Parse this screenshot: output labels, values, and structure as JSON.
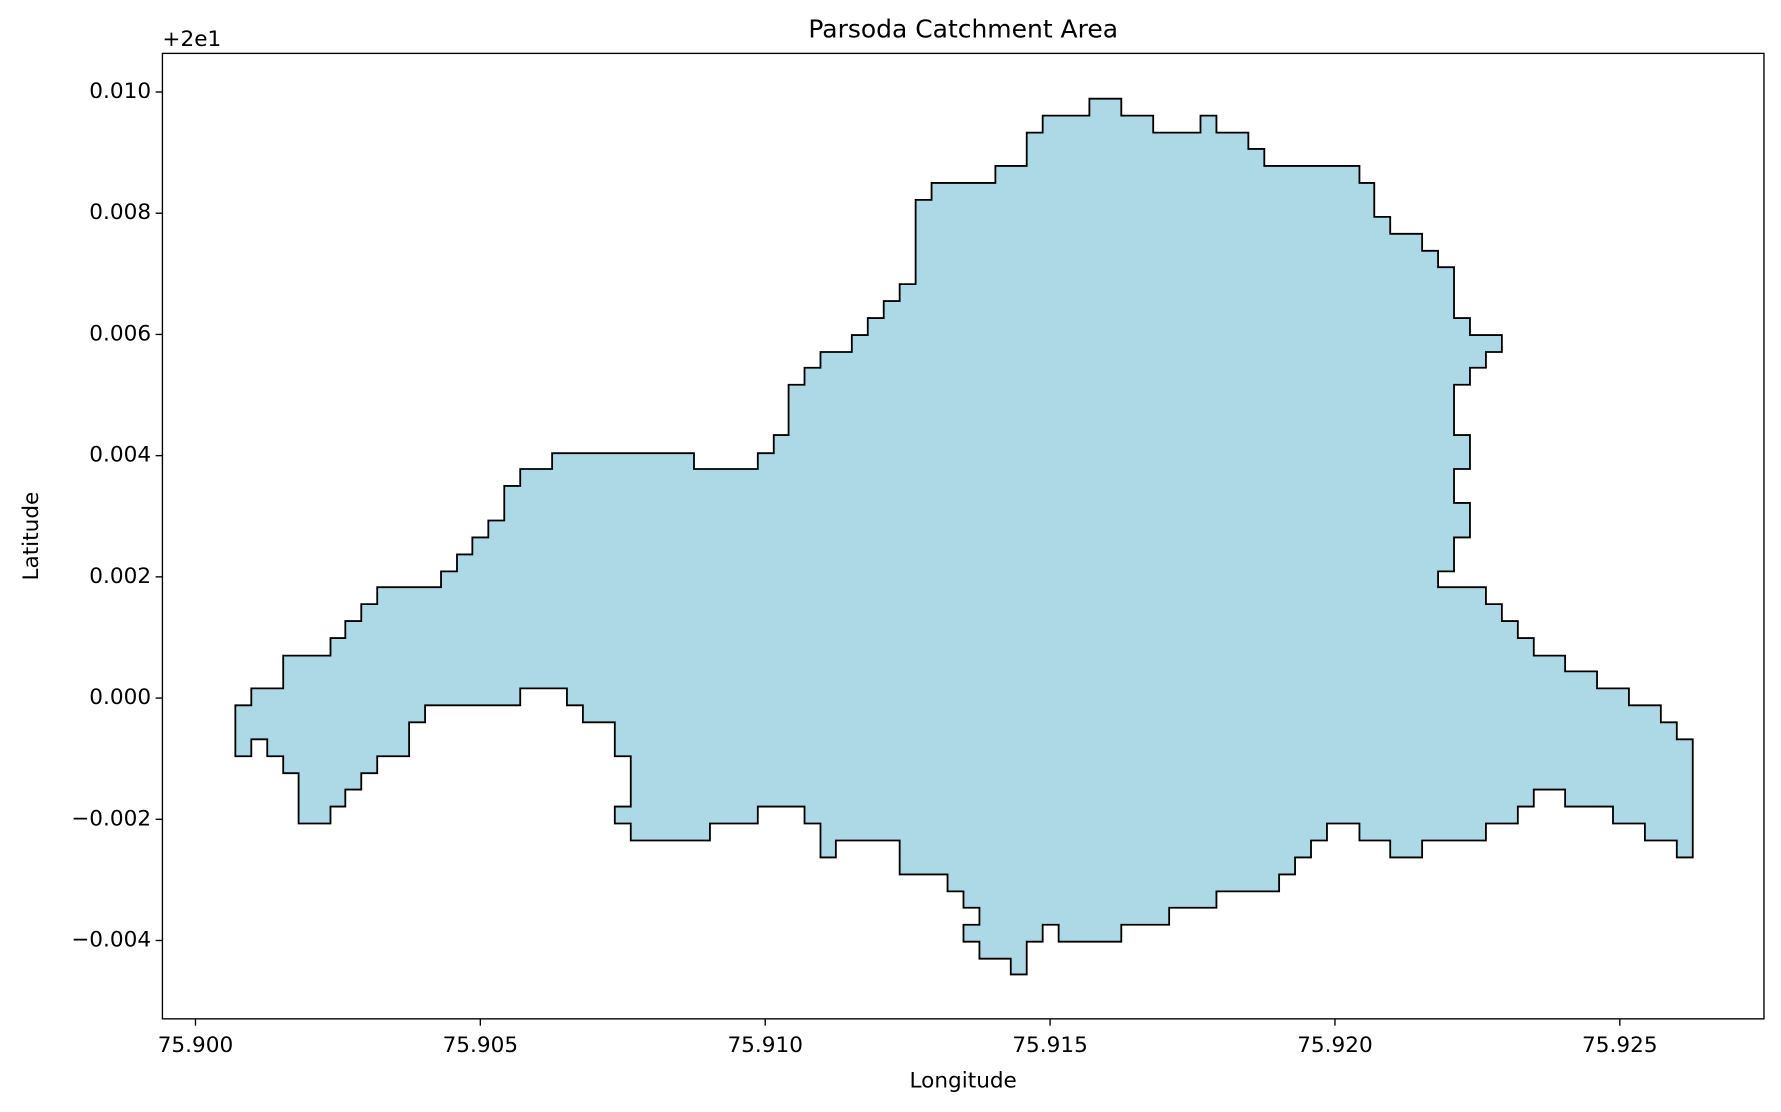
{
  "chart_data": {
    "type": "polygon",
    "title": "Parsoda Catchment Area",
    "xlabel": "Longitude",
    "ylabel": "Latitude",
    "y_offset_label": "+2e1",
    "fill_color": "#add8e6",
    "edge_color": "#000000",
    "xlim": [
      75.89942,
      75.92753
    ],
    "ylim": [
      -0.005293,
      0.010637
    ],
    "xticks": [
      {
        "value": 75.9,
        "label": "75.900"
      },
      75.905,
      {
        "value": 75.91,
        "label": "75.910"
      },
      75.915,
      {
        "value": 75.92,
        "label": "75.920"
      },
      75.925
    ],
    "yticks": [
      {
        "value": -0.004,
        "label": "−0.004"
      },
      {
        "value": -0.002,
        "label": "−0.002"
      },
      {
        "value": 0,
        "label": "0.000"
      },
      0.002,
      0.004,
      0.006,
      0.008,
      {
        "value": 0.01,
        "label": "0.010"
      }
    ],
    "x": [
      75.9007,
      75.9007,
      75.90098,
      75.90098,
      75.90154,
      75.90154,
      75.90237,
      75.90237,
      75.90263,
      75.90263,
      75.90291,
      75.90291,
      75.90319,
      75.90319,
      75.90431,
      75.90431,
      75.90459,
      75.90459,
      75.90486,
      75.90486,
      75.90514,
      75.90514,
      75.90542,
      75.90542,
      75.9057,
      75.9057,
      75.90626,
      75.90626,
      75.90875,
      75.90875,
      75.90987,
      75.90987,
      75.91015,
      75.91015,
      75.91041,
      75.91041,
      75.91069,
      75.91069,
      75.91097,
      75.91097,
      75.91152,
      75.91152,
      75.9118,
      75.9118,
      75.91208,
      75.91208,
      75.91236,
      75.91236,
      75.91264,
      75.91264,
      75.91292,
      75.91292,
      75.91404,
      75.91404,
      75.91459,
      75.91459,
      75.91487,
      75.91487,
      75.91569,
      75.91569,
      75.91625,
      75.91625,
      75.91681,
      75.91681,
      75.91764,
      75.91764,
      75.91792,
      75.91792,
      75.91848,
      75.91848,
      75.91876,
      75.91876,
      75.92043,
      75.92043,
      75.92069,
      75.92069,
      75.92097,
      75.92097,
      75.92153,
      75.92153,
      75.92181,
      75.92181,
      75.92209,
      75.92209,
      75.92237,
      75.92237,
      75.92293,
      75.92293,
      75.92265,
      75.92265,
      75.92237,
      75.92237,
      75.92209,
      75.92209,
      75.92237,
      75.92237,
      75.92209,
      75.92209,
      75.92237,
      75.92237,
      75.92209,
      75.92209,
      75.92181,
      75.92181,
      75.92265,
      75.92265,
      75.92293,
      75.92293,
      75.92321,
      75.92321,
      75.92349,
      75.92349,
      75.92404,
      75.92404,
      75.9246,
      75.9246,
      75.92516,
      75.92516,
      75.92572,
      75.92572,
      75.926,
      75.926,
      75.92628,
      75.92628,
      75.926,
      75.926,
      75.92544,
      75.92544,
      75.92488,
      75.92488,
      75.92404,
      75.92404,
      75.92349,
      75.92349,
      75.92321,
      75.92321,
      75.92265,
      75.92265,
      75.92153,
      75.92153,
      75.92097,
      75.92097,
      75.92043,
      75.92043,
      75.91986,
      75.91986,
      75.91958,
      75.91958,
      75.9193,
      75.9193,
      75.91902,
      75.91902,
      75.91792,
      75.91792,
      75.91709,
      75.91709,
      75.91625,
      75.91625,
      75.91515,
      75.91515,
      75.91487,
      75.91487,
      75.91459,
      75.91459,
      75.91431,
      75.91431,
      75.91376,
      75.91376,
      75.91348,
      75.91348,
      75.91376,
      75.91376,
      75.91348,
      75.91348,
      75.9132,
      75.9132,
      75.91236,
      75.91236,
      75.91124,
      75.91124,
      75.91097,
      75.91097,
      75.91069,
      75.91069,
      75.90987,
      75.90987,
      75.90903,
      75.90903,
      75.90764,
      75.90764,
      75.90736,
      75.90736,
      75.90764,
      75.90764,
      75.90736,
      75.90736,
      75.9068,
      75.9068,
      75.90652,
      75.90652,
      75.9057,
      75.9057,
      75.90403,
      75.90403,
      75.90375,
      75.90375,
      75.90319,
      75.90319,
      75.90291,
      75.90291,
      75.90263,
      75.90263,
      75.90237,
      75.90237,
      75.90181,
      75.90181,
      75.90154,
      75.90154,
      75.90126,
      75.90126,
      75.90098,
      75.90098
    ],
    "y": [
      -0.00096,
      -0.00012,
      -0.00012,
      0.00016,
      0.00016,
      0.0007,
      0.0007,
      0.00099,
      0.00099,
      0.00127,
      0.00127,
      0.00155,
      0.00155,
      0.00183,
      0.00183,
      0.00209,
      0.00209,
      0.00237,
      0.00237,
      0.00265,
      0.00265,
      0.00293,
      0.00293,
      0.0035,
      0.0035,
      0.00378,
      0.00378,
      0.00404,
      0.00404,
      0.00378,
      0.00378,
      0.00404,
      0.00404,
      0.00434,
      0.00434,
      0.00517,
      0.00517,
      0.00545,
      0.00545,
      0.00571,
      0.00571,
      0.00599,
      0.00599,
      0.00627,
      0.00627,
      0.00655,
      0.00655,
      0.00683,
      0.00683,
      0.00822,
      0.00822,
      0.0085,
      0.0085,
      0.00878,
      0.00878,
      0.00933,
      0.00933,
      0.00961,
      0.00961,
      0.00989,
      0.00989,
      0.00961,
      0.00961,
      0.00933,
      0.00933,
      0.00961,
      0.00961,
      0.00933,
      0.00933,
      0.00906,
      0.00906,
      0.00878,
      0.00878,
      0.0085,
      0.0085,
      0.00794,
      0.00794,
      0.00766,
      0.00766,
      0.00738,
      0.00738,
      0.00711,
      0.00711,
      0.00627,
      0.00627,
      0.00599,
      0.00599,
      0.00571,
      0.00571,
      0.00545,
      0.00545,
      0.00517,
      0.00517,
      0.00434,
      0.00434,
      0.00378,
      0.00378,
      0.00322,
      0.00322,
      0.00265,
      0.00265,
      0.00209,
      0.00209,
      0.00183,
      0.00183,
      0.00155,
      0.00155,
      0.00127,
      0.00127,
      0.00099,
      0.00099,
      0.0007,
      0.0007,
      0.00044,
      0.00044,
      0.00016,
      0.00016,
      -0.00012,
      -0.00012,
      -0.0004,
      -0.0004,
      -0.00068,
      -0.00068,
      -0.00263,
      -0.00263,
      -0.00235,
      -0.00235,
      -0.00207,
      -0.00207,
      -0.00179,
      -0.00179,
      -0.00151,
      -0.00151,
      -0.00179,
      -0.00179,
      -0.00207,
      -0.00207,
      -0.00235,
      -0.00235,
      -0.00263,
      -0.00263,
      -0.00235,
      -0.00235,
      -0.00207,
      -0.00207,
      -0.00235,
      -0.00235,
      -0.00263,
      -0.00263,
      -0.00291,
      -0.00291,
      -0.00319,
      -0.00319,
      -0.00346,
      -0.00346,
      -0.00374,
      -0.00374,
      -0.00402,
      -0.00402,
      -0.00374,
      -0.00374,
      -0.00402,
      -0.00402,
      -0.00456,
      -0.00456,
      -0.0043,
      -0.0043,
      -0.00402,
      -0.00402,
      -0.00374,
      -0.00374,
      -0.00346,
      -0.00346,
      -0.00319,
      -0.00319,
      -0.00291,
      -0.00291,
      -0.00235,
      -0.00235,
      -0.00263,
      -0.00263,
      -0.00207,
      -0.00207,
      -0.00179,
      -0.00179,
      -0.00207,
      -0.00207,
      -0.00235,
      -0.00235,
      -0.00207,
      -0.00207,
      -0.00179,
      -0.00179,
      -0.00096,
      -0.00096,
      -0.0004,
      -0.0004,
      -0.00012,
      -0.00012,
      0.00016,
      0.00016,
      -0.00012,
      -0.00012,
      -0.0004,
      -0.0004,
      -0.00096,
      -0.00096,
      -0.00124,
      -0.00124,
      -0.00151,
      -0.00151,
      -0.00179,
      -0.00179,
      -0.00207,
      -0.00207,
      -0.00124,
      -0.00124,
      -0.00096,
      -0.00096,
      -0.00068,
      -0.00068,
      -0.00096
    ]
  }
}
